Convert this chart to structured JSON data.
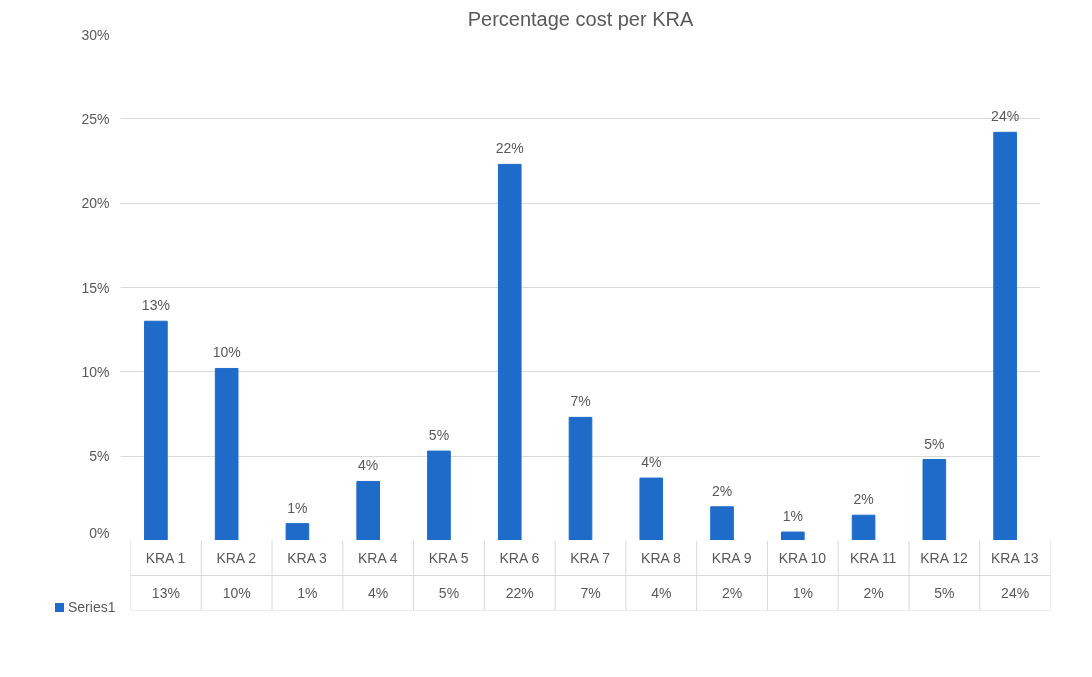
{
  "chart_data": {
    "type": "bar",
    "title": "Percentage cost per KRA",
    "categories": [
      "KRA 1",
      "KRA 2",
      "KRA 3",
      "KRA 4",
      "KRA 5",
      "KRA 6",
      "KRA 7",
      "KRA 8",
      "KRA 9",
      "KRA 10",
      "KRA 11",
      "KRA 12",
      "KRA 13"
    ],
    "series": [
      {
        "name": "Series1",
        "color": "#1f6bc9",
        "values": [
          13.0,
          10.2,
          1.0,
          3.5,
          5.3,
          22.3,
          7.3,
          3.7,
          2.0,
          0.5,
          1.5,
          4.8,
          24.2
        ],
        "value_labels": [
          "13%",
          "10%",
          "1%",
          "4%",
          "5%",
          "22%",
          "7%",
          "4%",
          "2%",
          "1%",
          "2%",
          "5%",
          "24%"
        ]
      }
    ],
    "ylim": [
      0,
      30
    ],
    "yticks": [
      {
        "value": 0,
        "label": "0%"
      },
      {
        "value": 5,
        "label": "5%"
      },
      {
        "value": 10,
        "label": "10%"
      },
      {
        "value": 15,
        "label": "15%"
      },
      {
        "value": 20,
        "label": "20%"
      },
      {
        "value": 25,
        "label": "25%"
      },
      {
        "value": 30,
        "label": "30%"
      }
    ],
    "grid": "y"
  }
}
